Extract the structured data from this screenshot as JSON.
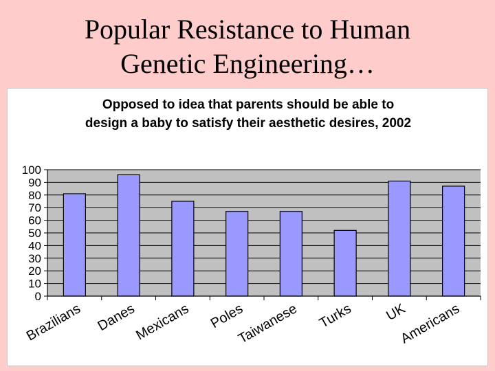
{
  "slide": {
    "title_line1": "Popular Resistance to Human",
    "title_line2": "Genetic Engineering…"
  },
  "chart_data": {
    "type": "bar",
    "title_line1": "Opposed to idea that parents should be able to",
    "title_line2": "design a baby to satisfy their aesthetic desires, 2002",
    "categories": [
      "Brazilians",
      "Danes",
      "Mexicans",
      "Poles",
      "Taiwanese",
      "Turks",
      "UK",
      "Americans"
    ],
    "values": [
      81,
      96,
      75,
      67,
      67,
      52,
      91,
      87
    ],
    "ylim": [
      0,
      100
    ],
    "yticks": [
      0,
      10,
      20,
      30,
      40,
      50,
      60,
      70,
      80,
      90,
      100
    ],
    "xlabel": "",
    "ylabel": "",
    "grid": true,
    "colors": {
      "bar_fill": "#9999ff",
      "bar_stroke": "#000000",
      "plot_bg": "#c0c0c0",
      "gridline": "#000000"
    }
  }
}
